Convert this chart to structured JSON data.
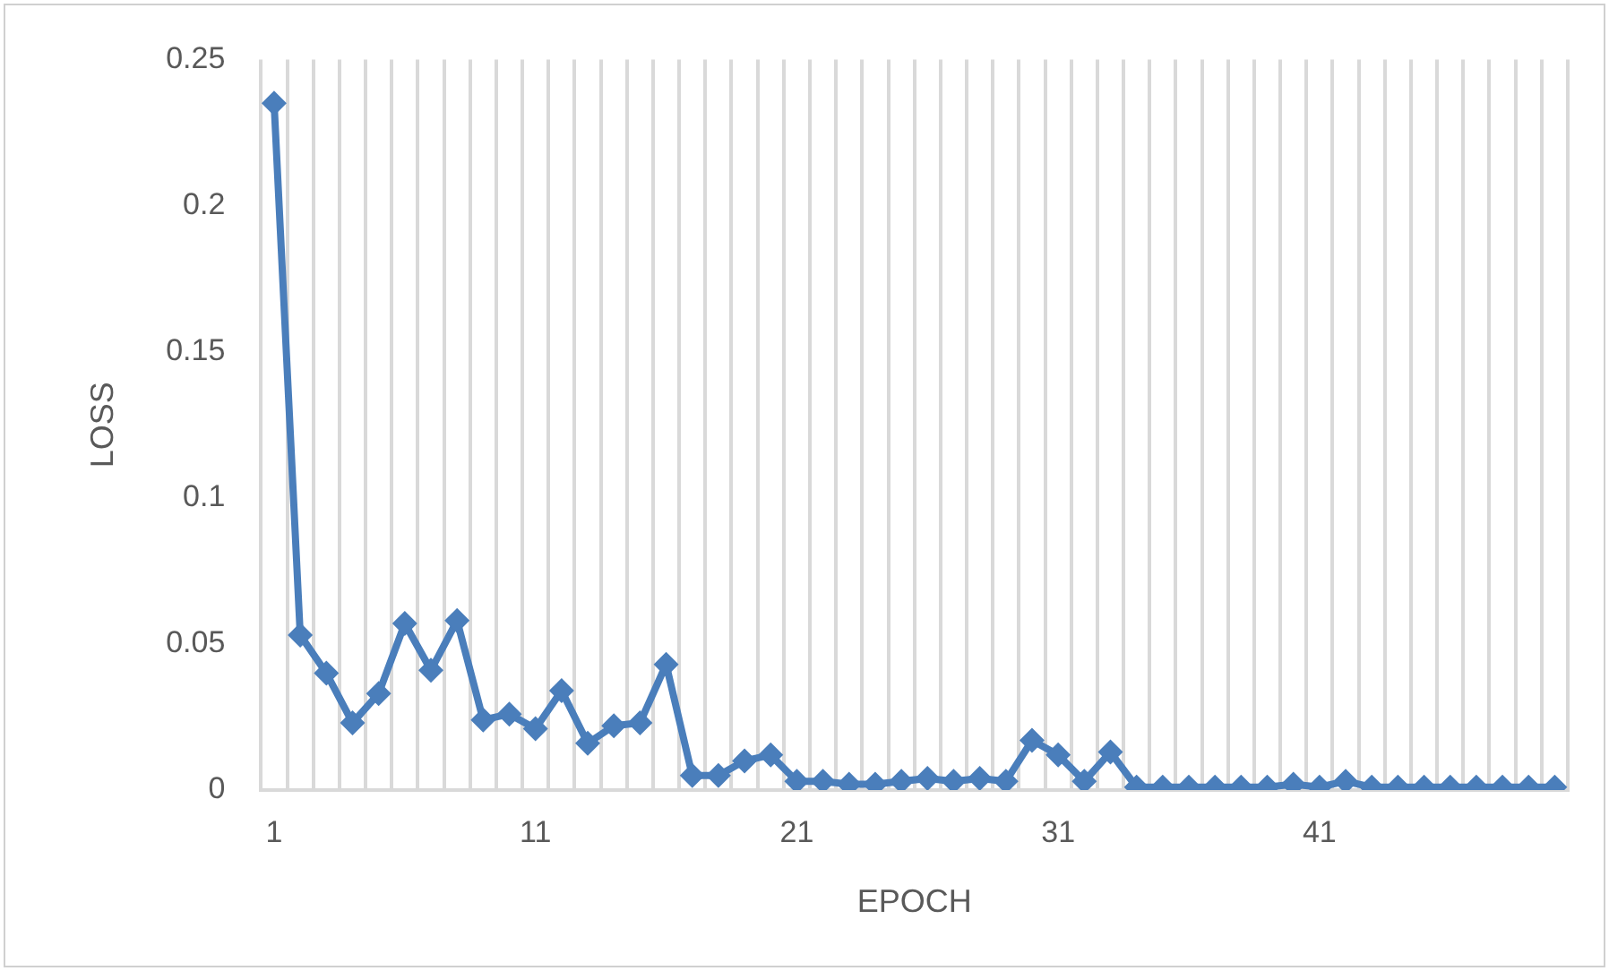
{
  "chart_data": {
    "type": "line",
    "xlabel": "EPOCH",
    "ylabel": "LOSS",
    "categories": [
      "1",
      null,
      null,
      null,
      null,
      null,
      null,
      null,
      null,
      null,
      "11",
      null,
      null,
      null,
      null,
      null,
      null,
      null,
      null,
      null,
      "21",
      null,
      null,
      null,
      null,
      null,
      null,
      null,
      null,
      null,
      "31",
      null,
      null,
      null,
      null,
      null,
      null,
      null,
      null,
      null,
      "41",
      null,
      null,
      null,
      null,
      null,
      null,
      null,
      null,
      null
    ],
    "series": [
      {
        "color": "#4a7ebb",
        "values": [
          0.235,
          0.053,
          0.04,
          0.023,
          0.033,
          0.057,
          0.041,
          0.058,
          0.024,
          0.026,
          0.021,
          0.034,
          0.016,
          0.022,
          0.023,
          0.043,
          0.005,
          0.005,
          0.01,
          0.012,
          0.003,
          0.003,
          0.002,
          0.002,
          0.003,
          0.004,
          0.003,
          0.004,
          0.003,
          0.017,
          0.012,
          0.003,
          0.013,
          0.001,
          0.001,
          0.001,
          0.001,
          0.001,
          0.001,
          0.002,
          0.001,
          0.003,
          0.001,
          0.001,
          0.001,
          0.001,
          0.001,
          0.001,
          0.001,
          0.001
        ]
      }
    ],
    "ylim": [
      0,
      0.25
    ],
    "yticks": [
      0,
      0.05,
      0.1,
      0.15,
      0.2,
      0.25
    ],
    "grid": "x",
    "legend": false,
    "marker": "diamond",
    "line_style": "solid"
  }
}
